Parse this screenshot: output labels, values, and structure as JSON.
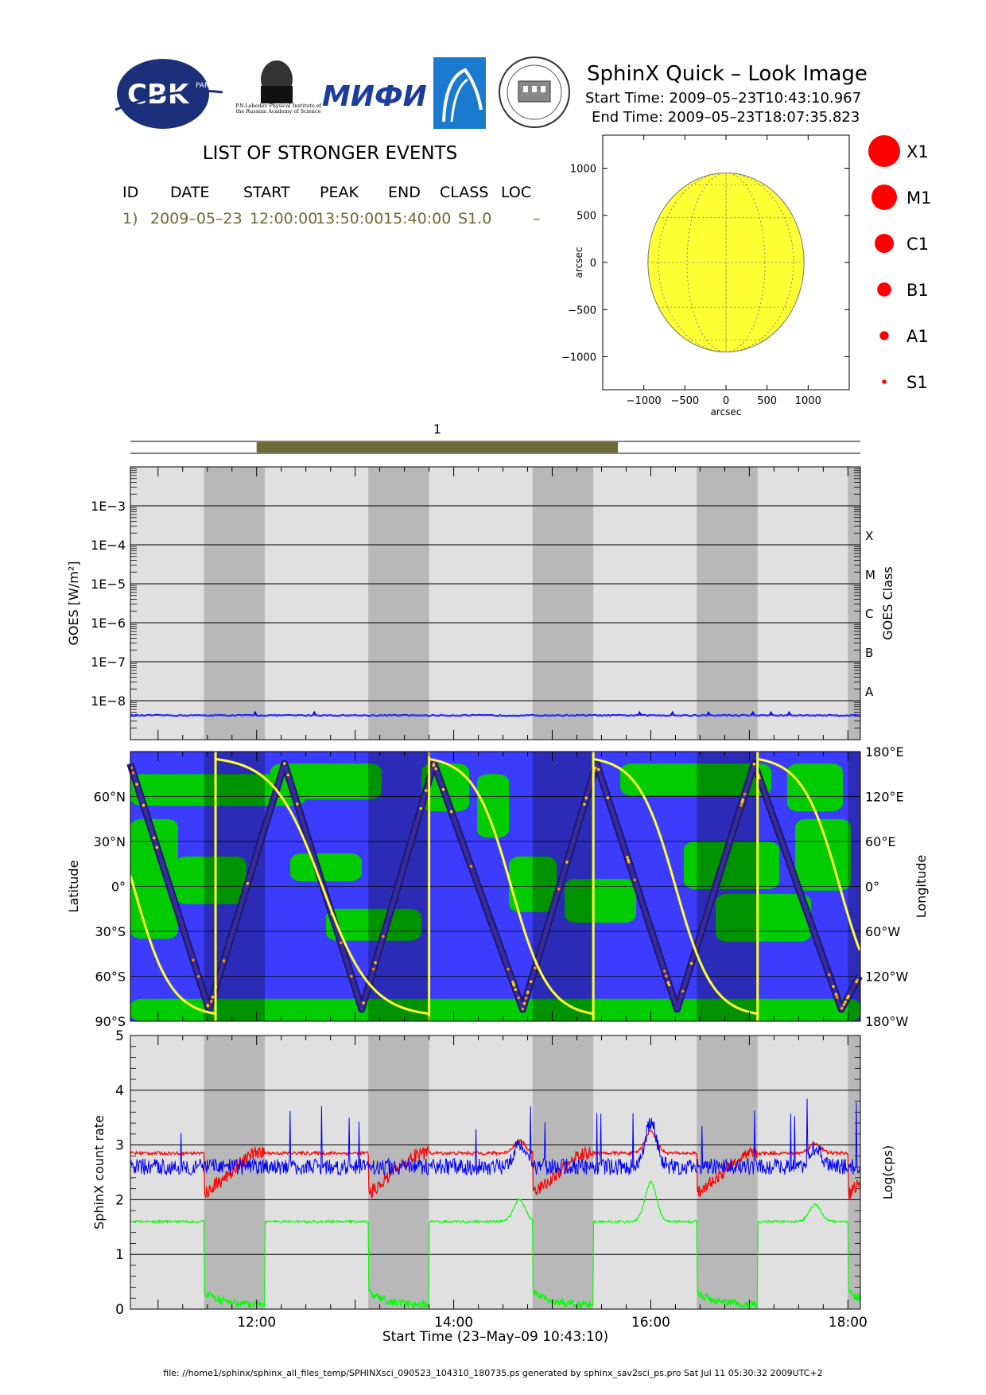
{
  "header": {
    "title": "SphinX Quick – Look Image",
    "start_time": "Start Time: 2009–05–23T10:43:10.967",
    "end_time": "End Time: 2009–05–23T18:07:35.823",
    "logo_cbk_text": "CBK",
    "logo_cbk_sub": "PAN",
    "logo_lebedev_text": "P.N.Lebedev Physical Institute of the Russian Academy of Science",
    "logo_mifi_text": "МИФИ"
  },
  "events": {
    "title": "LIST OF STRONGER EVENTS",
    "columns": [
      "ID",
      "DATE",
      "START",
      "PEAK",
      "END",
      "CLASS",
      "LOC"
    ],
    "rows": [
      {
        "id": "1)",
        "date": "2009–05–23",
        "start": "12:00:00",
        "peak": "13:50:00",
        "end": "15:40:00",
        "class": "S1.0",
        "loc": "–"
      }
    ]
  },
  "colors": {
    "event_bar": "#6b6b35",
    "event_text": "#6b6b35",
    "sun": "#ffff33",
    "legend_dot": "#ff0000",
    "goes_line": "#0000ff",
    "goes_line2": "#ff0000",
    "ocean": "#3c3cff",
    "land": "#00cc00",
    "orbit_line": "#ffff33",
    "panel_light": "#e0e0e0",
    "panel_dark": "#b8b8b8",
    "sphinx_red": "#ff0000",
    "sphinx_blue": "#0000ff",
    "sphinx_green": "#00ff00"
  },
  "chart_data": [
    {
      "type": "scatter",
      "panel": "solar-disk",
      "xlabel": "arcsec",
      "ylabel": "arcsec",
      "xlim": [
        -1500,
        1500
      ],
      "ylim": [
        -1350,
        1350
      ],
      "xticks": [
        -1000,
        -500,
        0,
        500,
        1000
      ],
      "yticks": [
        -1000,
        -500,
        0,
        500,
        1000
      ],
      "xtick_labels": [
        "−1000",
        "−500",
        "0",
        "500",
        "1000"
      ],
      "ytick_labels": [
        "−1000",
        "−500",
        "0",
        "500",
        "1000"
      ],
      "disk_radius": 950,
      "grid": true
    },
    {
      "type": "scatter",
      "panel": "class-legend",
      "entries": [
        {
          "label": "X1",
          "size": 5
        },
        {
          "label": "M1",
          "size": 4
        },
        {
          "label": "C1",
          "size": 3
        },
        {
          "label": "B1",
          "size": 2.2
        },
        {
          "label": "A1",
          "size": 1.4
        },
        {
          "label": "S1",
          "size": 0.7
        }
      ]
    },
    {
      "type": "bar",
      "panel": "event-timeline",
      "xlim": [
        "10:43:10",
        "18:07:35"
      ],
      "events": [
        {
          "label": "1",
          "start": "12:00:00",
          "end": "15:40:00"
        }
      ]
    },
    {
      "type": "line",
      "panel": "goes",
      "ylabel": "GOES [W/m²]",
      "ylabel2": "GOES Class",
      "yscale": "log",
      "ylim": [
        1e-09,
        0.01
      ],
      "yticks": [
        1e-08,
        1e-07,
        1e-06,
        1e-05,
        0.0001,
        0.001
      ],
      "ytick_labels": [
        "1E−8",
        "1E−7",
        "1E−6",
        "1E−5",
        "1E−4",
        "1E−3"
      ],
      "class_labels": [
        {
          "label": "A",
          "value": 1e-08
        },
        {
          "label": "B",
          "value": 1e-07
        },
        {
          "label": "C",
          "value": 1e-06
        },
        {
          "label": "M",
          "value": 1e-05
        },
        {
          "label": "X",
          "value": 0.0001
        }
      ],
      "series": [
        {
          "values_level": 4.2e-09,
          "values_range": [
            4e-09,
            5e-09
          ]
        }
      ],
      "xlim": [
        "10:43:10",
        "18:07:35"
      ],
      "shadow_intervals": [
        [
          "11:28",
          "12:05"
        ],
        [
          "13:08",
          "13:45"
        ],
        [
          "14:48",
          "15:25"
        ],
        [
          "16:28",
          "17:05"
        ],
        [
          "18:00",
          "18:07:35"
        ]
      ]
    },
    {
      "type": "line",
      "panel": "latitude-longitude",
      "ylabel": "Latitude",
      "ylabel2": "Longitude",
      "ylim": [
        -90,
        90
      ],
      "yticks": [
        -90,
        -60,
        -30,
        0,
        30,
        60
      ],
      "ytick_labels": [
        "90°S",
        "60°S",
        "30°S",
        "0°",
        "30°N",
        "60°N"
      ],
      "ytick2_labels": [
        "180°W",
        "120°W",
        "60°W",
        "0°",
        "60°E",
        "120°E",
        "180°E"
      ],
      "latitude_turning_points": [
        [
          "10:43",
          82
        ],
        [
          "11:31",
          -82
        ],
        [
          "12:17",
          82
        ],
        [
          "13:04",
          -82
        ],
        [
          "13:48",
          82
        ],
        [
          "14:42",
          -82
        ],
        [
          "15:27",
          82
        ],
        [
          "16:16",
          -82
        ],
        [
          "17:03",
          82
        ],
        [
          "17:56",
          -82
        ],
        [
          "18:07",
          -60
        ]
      ],
      "xlim": [
        "10:43:10",
        "18:07:35"
      ]
    },
    {
      "type": "line",
      "panel": "sphinx-count-rate",
      "ylabel": "SphinX count rate",
      "ylabel2": "Log(cps)",
      "ylim": [
        0,
        5
      ],
      "yticks": [
        0,
        1,
        2,
        3,
        4,
        5
      ],
      "ytick_labels": [
        "0",
        "1",
        "2",
        "3",
        "4",
        "5"
      ],
      "xlabel": "Start Time (23–May–09 10:43:10)",
      "xlim": [
        "10:43:10",
        "18:07:35"
      ],
      "xticks": [
        "12:00",
        "14:00",
        "16:00",
        "18:00"
      ],
      "series": [
        {
          "color": "red",
          "base_level": 2.85
        },
        {
          "color": "blue",
          "base_level": 2.6
        },
        {
          "color": "green",
          "base_level": 1.6
        }
      ]
    }
  ],
  "footer": "file: //home1/sphinx/sphinx_all_files_temp/SPHINXsci_090523_104310_180735.ps generated by sphinx_sav2sci_ps.pro Sat Jul 11 05:30:32 2009UTC+2"
}
